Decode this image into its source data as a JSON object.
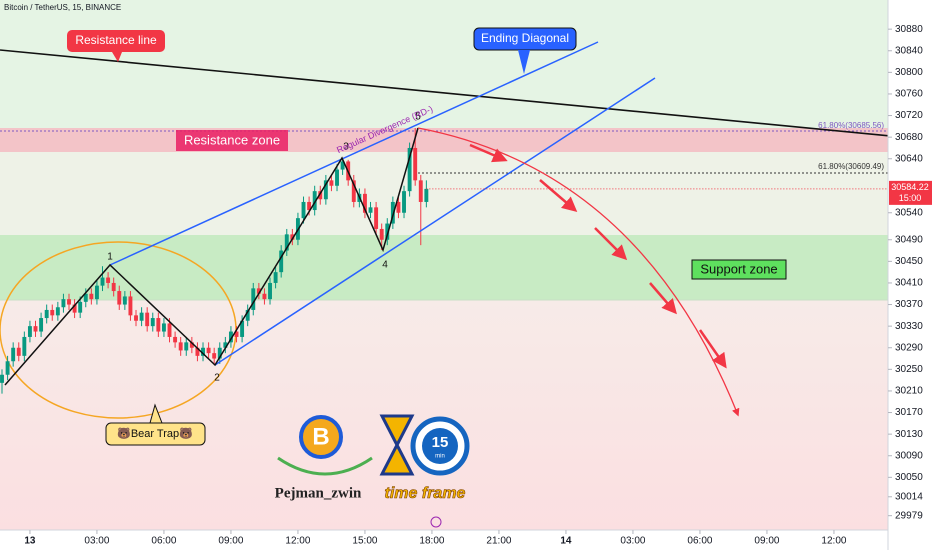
{
  "header": {
    "symbol": "Bitcoin / TetherUS, 15, BINANCE"
  },
  "chart_data": {
    "type": "candlestick",
    "x": [
      -1.25,
      -1,
      -0.75,
      -0.5,
      -0.25,
      0,
      0.25,
      0.5,
      0.75,
      1,
      1.25,
      1.5,
      1.75,
      2,
      2.25,
      2.5,
      2.75,
      3,
      3.25,
      3.5,
      3.75,
      4,
      4.25,
      4.5,
      4.75,
      5,
      5.25,
      5.5,
      5.75,
      6,
      6.25,
      6.5,
      6.75,
      7,
      7.25,
      7.5,
      7.75,
      8,
      8.25,
      8.5,
      8.75,
      9,
      9.25,
      9.5,
      9.75,
      10,
      10.25,
      10.5,
      10.75,
      11,
      11.25,
      11.5,
      11.75,
      12,
      12.25,
      12.5,
      12.75,
      13,
      13.25,
      13.5,
      13.75,
      14,
      14.25,
      14.5,
      14.75,
      15,
      15.25,
      15.5,
      15.75,
      16,
      16.25,
      16.5,
      16.75,
      17,
      17.25,
      17.5,
      17.75
    ],
    "open": [
      30225,
      30240,
      30265,
      30290,
      30275,
      30310,
      30330,
      30320,
      30345,
      30360,
      30350,
      30365,
      30380,
      30370,
      30355,
      30375,
      30390,
      30380,
      30405,
      30420,
      30410,
      30395,
      30370,
      30385,
      30350,
      30340,
      30355,
      30330,
      30345,
      30320,
      30335,
      30310,
      30300,
      30285,
      30300,
      30290,
      30275,
      30290,
      30280,
      30270,
      30290,
      30300,
      30320,
      30310,
      30340,
      30360,
      30400,
      30390,
      30380,
      30410,
      30430,
      30470,
      30500,
      30490,
      30530,
      30560,
      30545,
      30580,
      30565,
      30600,
      30590,
      30620,
      30635,
      30600,
      30560,
      30575,
      30540,
      30550,
      30510,
      30490,
      30520,
      30560,
      30540,
      30580,
      30660,
      30600,
      30560
    ],
    "high": [
      30250,
      30275,
      30300,
      30300,
      30320,
      30340,
      30340,
      30355,
      30370,
      30370,
      30375,
      30390,
      30390,
      30380,
      30385,
      30400,
      30400,
      30415,
      30441,
      30430,
      30420,
      30405,
      30395,
      30395,
      30360,
      30365,
      30365,
      30355,
      30355,
      30345,
      30345,
      30320,
      30310,
      30310,
      30310,
      30300,
      30300,
      30300,
      30290,
      30300,
      30310,
      30330,
      30330,
      30350,
      30370,
      30410,
      30410,
      30400,
      30420,
      30440,
      30480,
      30510,
      30510,
      30540,
      30570,
      30570,
      30590,
      30590,
      30610,
      30610,
      30630,
      30640,
      30638,
      30610,
      30585,
      30585,
      30560,
      30560,
      30520,
      30530,
      30570,
      30570,
      30590,
      30670,
      30697,
      30610,
      30600
    ],
    "low": [
      30205,
      30230,
      30255,
      30265,
      30265,
      30300,
      30310,
      30310,
      30335,
      30340,
      30340,
      30355,
      30360,
      30345,
      30345,
      30365,
      30370,
      30370,
      30395,
      30400,
      30385,
      30360,
      30360,
      30340,
      30330,
      30330,
      30320,
      30320,
      30310,
      30310,
      30300,
      30290,
      30275,
      30275,
      30280,
      30265,
      30265,
      30270,
      30258,
      30260,
      30280,
      30290,
      30300,
      30300,
      30330,
      30350,
      30380,
      30370,
      30370,
      30400,
      30420,
      30460,
      30480,
      30480,
      30520,
      30535,
      30535,
      30555,
      30555,
      30580,
      30580,
      30610,
      30590,
      30550,
      30550,
      30530,
      30530,
      30500,
      30471,
      30480,
      30510,
      30530,
      30530,
      30570,
      30590,
      30480,
      30550
    ],
    "close": [
      30240,
      30265,
      30290,
      30275,
      30310,
      30330,
      30320,
      30345,
      30360,
      30350,
      30365,
      30380,
      30370,
      30355,
      30375,
      30390,
      30380,
      30405,
      30420,
      30410,
      30395,
      30370,
      30385,
      30350,
      30340,
      30355,
      30330,
      30345,
      30320,
      30335,
      30310,
      30300,
      30285,
      30300,
      30290,
      30275,
      30290,
      30280,
      30270,
      30290,
      30300,
      30320,
      30310,
      30340,
      30360,
      30400,
      30390,
      30380,
      30410,
      30430,
      30470,
      30500,
      30490,
      30530,
      30560,
      30545,
      30580,
      30565,
      30600,
      30590,
      30620,
      30635,
      30600,
      30560,
      30575,
      30540,
      30550,
      30510,
      30490,
      30520,
      30560,
      30540,
      30580,
      30660,
      30600,
      30560,
      30584.22
    ],
    "up_color": "#089981",
    "down_color": "#f23645",
    "xlim": [
      -1.34,
      38.42
    ],
    "xticks": [
      {
        "value": 0,
        "label": "13"
      },
      {
        "value": 3,
        "label": "03:00"
      },
      {
        "value": 6,
        "label": "06:00"
      },
      {
        "value": 9,
        "label": "09:00"
      },
      {
        "value": 12,
        "label": "12:00"
      },
      {
        "value": 15,
        "label": "15:00"
      },
      {
        "value": 18,
        "label": "18:00"
      },
      {
        "value": 21,
        "label": "21:00"
      },
      {
        "value": 24,
        "label": "14"
      },
      {
        "value": 27,
        "label": "03:00"
      },
      {
        "value": 30,
        "label": "06:00"
      },
      {
        "value": 33,
        "label": "09:00"
      },
      {
        "value": 36,
        "label": "12:00"
      }
    ],
    "ylim": [
      29971,
      30934
    ],
    "yticks": [
      30880,
      30840,
      30800,
      30760,
      30720,
      30680,
      30640,
      30540,
      30490,
      30450,
      30410,
      30370,
      30330,
      30290,
      30250,
      30210,
      30170,
      30130,
      30090,
      30050,
      30014,
      29979
    ],
    "countdown": "15:00"
  },
  "annotations": {
    "resistance_line": "Resistance line",
    "ending_diagonal": "Ending Diagonal",
    "resistance_zone": "Resistance zone",
    "support_zone": "Support zone",
    "divergence": "Regular Divergence (RD-)",
    "waves": [
      "1",
      "2",
      "3",
      "4",
      "5"
    ],
    "bear_trap": "🐻Bear Trap🐻",
    "fib_upper": "61.80%(30685.56)",
    "fib_lower": "61.80%(30609.49)"
  },
  "branding": {
    "coin_symbol": "B",
    "author": "Pejman_zwin",
    "time_frame": "time frame",
    "clock": "15",
    "clock_unit": "min"
  }
}
